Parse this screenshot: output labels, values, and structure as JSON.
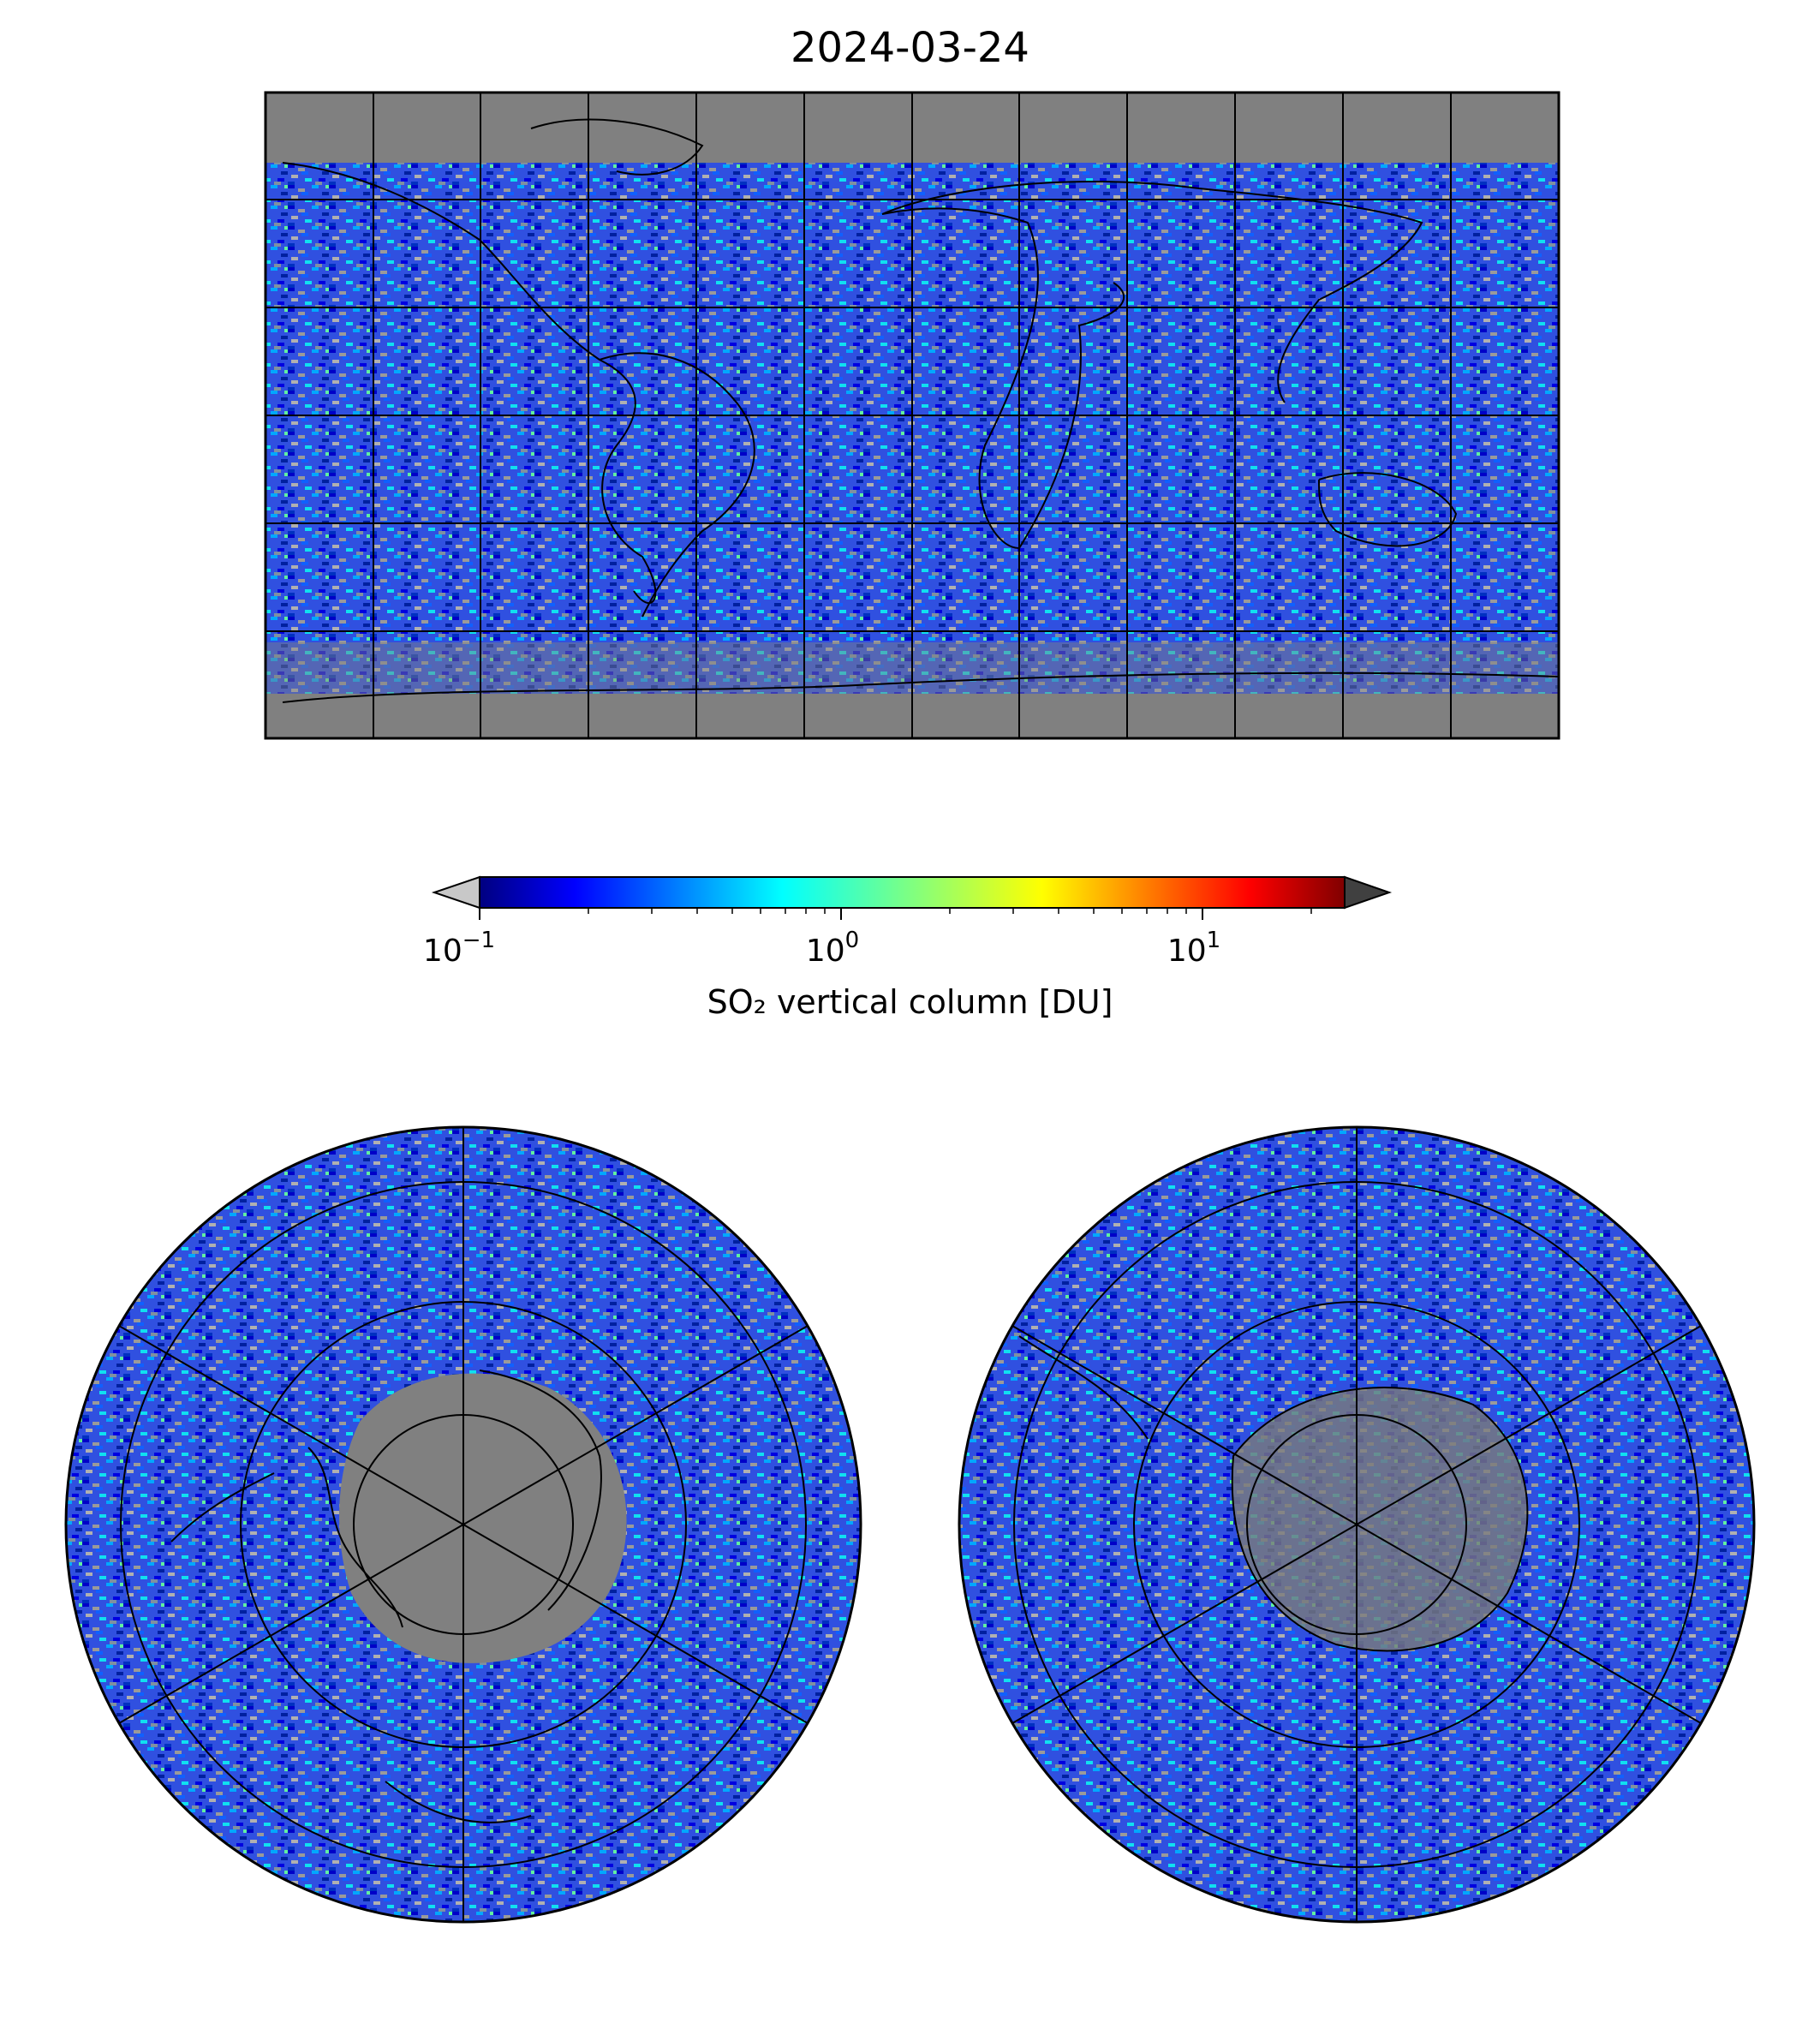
{
  "title": "2024-03-24",
  "colorbar": {
    "label": "SO₂ vertical column [DU]",
    "scale": "log",
    "range": [
      0.1,
      25
    ],
    "ticks": [
      {
        "base": "10",
        "exp": "−1",
        "value": 0.1
      },
      {
        "base": "10",
        "exp": "0",
        "value": 1
      },
      {
        "base": "10",
        "exp": "1",
        "value": 10
      }
    ],
    "colormap": "jet",
    "under_color": "#c8c8c8",
    "over_color": "#404040"
  },
  "maps": [
    {
      "name": "global",
      "projection": "plate-carree",
      "background": "#808080"
    },
    {
      "name": "north-polar",
      "projection": "north-polar-stereographic",
      "background": "#808080"
    },
    {
      "name": "south-polar",
      "projection": "south-polar-stereographic",
      "background": "#808080"
    }
  ],
  "colors": {
    "no_data": "#808080",
    "low": "#b4b4b4",
    "mid": "#0000c8",
    "high": "#00c8ff"
  }
}
